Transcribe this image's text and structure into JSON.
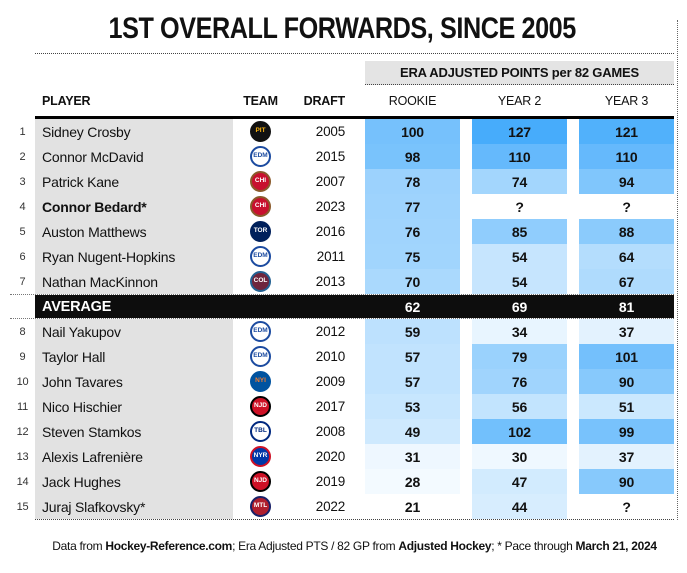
{
  "title": "1ST OVERALL FORWARDS, SINCE 2005",
  "chart_data": {
    "type": "table",
    "title": "1ST OVERALL FORWARDS, SINCE 2005",
    "value_group_header": "ERA ADJUSTED POINTS per 82 GAMES",
    "columns": {
      "player": "PLAYER",
      "team": "TEAM",
      "draft": "DRAFT",
      "rookie": "ROOKIE",
      "year2": "YEAR 2",
      "year3": "YEAR 3"
    },
    "heatmap": {
      "min_value": 21,
      "max_value": 127,
      "min_color": "#FFFFFF",
      "max_color": "#47ACFB"
    },
    "rows": [
      {
        "type": "player",
        "rank": 1,
        "name": "Sidney Crosby",
        "bold": false,
        "team": "Pittsburgh Penguins",
        "team_abbr": "PIT",
        "draft": "2005",
        "values": [
          100,
          127,
          121
        ]
      },
      {
        "type": "player",
        "rank": 2,
        "name": "Connor McDavid",
        "bold": false,
        "team": "Edmonton Oilers",
        "team_abbr": "EDM",
        "draft": "2015",
        "values": [
          98,
          110,
          110
        ]
      },
      {
        "type": "player",
        "rank": 3,
        "name": "Patrick Kane",
        "bold": false,
        "team": "Chicago Blackhawks",
        "team_abbr": "CHI",
        "draft": "2007",
        "values": [
          78,
          74,
          94
        ]
      },
      {
        "type": "player",
        "rank": 4,
        "name": "Connor Bedard*",
        "bold": true,
        "team": "Chicago Blackhawks",
        "team_abbr": "CHI",
        "draft": "2023",
        "values": [
          77,
          "?",
          "?"
        ]
      },
      {
        "type": "player",
        "rank": 5,
        "name": "Auston Matthews",
        "bold": false,
        "team": "Toronto Maple Leafs",
        "team_abbr": "TOR",
        "draft": "2016",
        "values": [
          76,
          85,
          88
        ]
      },
      {
        "type": "player",
        "rank": 6,
        "name": "Ryan Nugent-Hopkins",
        "bold": false,
        "team": "Edmonton Oilers",
        "team_abbr": "EDM",
        "draft": "2011",
        "values": [
          75,
          54,
          64
        ]
      },
      {
        "type": "player",
        "rank": 7,
        "name": "Nathan MacKinnon",
        "bold": false,
        "team": "Colorado Avalanche",
        "team_abbr": "COL",
        "draft": "2013",
        "values": [
          70,
          54,
          67
        ]
      },
      {
        "type": "average",
        "label": "AVERAGE",
        "values": [
          62,
          69,
          81
        ]
      },
      {
        "type": "player",
        "rank": 8,
        "name": "Nail Yakupov",
        "bold": false,
        "team": "Edmonton Oilers",
        "team_abbr": "EDM",
        "draft": "2012",
        "values": [
          59,
          34,
          37
        ]
      },
      {
        "type": "player",
        "rank": 9,
        "name": "Taylor Hall",
        "bold": false,
        "team": "Edmonton Oilers",
        "team_abbr": "EDM",
        "draft": "2010",
        "values": [
          57,
          79,
          101
        ]
      },
      {
        "type": "player",
        "rank": 10,
        "name": "John Tavares",
        "bold": false,
        "team": "New York Islanders",
        "team_abbr": "NYI",
        "draft": "2009",
        "values": [
          57,
          76,
          90
        ]
      },
      {
        "type": "player",
        "rank": 11,
        "name": "Nico Hischier",
        "bold": false,
        "team": "New Jersey Devils",
        "team_abbr": "NJD",
        "draft": "2017",
        "values": [
          53,
          56,
          51
        ]
      },
      {
        "type": "player",
        "rank": 12,
        "name": "Steven Stamkos",
        "bold": false,
        "team": "Tampa Bay Lightning",
        "team_abbr": "TBL",
        "draft": "2008",
        "values": [
          49,
          102,
          99
        ]
      },
      {
        "type": "player",
        "rank": 13,
        "name": "Alexis Lafrenière",
        "bold": false,
        "team": "New York Rangers",
        "team_abbr": "NYR",
        "draft": "2020",
        "values": [
          31,
          30,
          37
        ]
      },
      {
        "type": "player",
        "rank": 14,
        "name": "Jack Hughes",
        "bold": false,
        "team": "New Jersey Devils",
        "team_abbr": "NJD",
        "draft": "2019",
        "values": [
          28,
          47,
          90
        ]
      },
      {
        "type": "player",
        "rank": 15,
        "name": "Juraj Slafkovsky*",
        "bold": false,
        "team": "Montreal Canadiens",
        "team_abbr": "MTL",
        "draft": "2022",
        "values": [
          21,
          44,
          "?"
        ]
      }
    ],
    "teams": {
      "PIT": {
        "name": "Pittsburgh Penguins",
        "slug": "pittsburgh-penguins",
        "bg": "#111111",
        "fg": "#FCB514",
        "border": "#111111"
      },
      "EDM": {
        "name": "Edmonton Oilers",
        "slug": "edmonton-oilers",
        "bg": "#FFFFFF",
        "fg": "#1C4BA0",
        "border": "#1C4BA0"
      },
      "CHI": {
        "name": "Chicago Blackhawks",
        "slug": "chicago-blackhawks",
        "bg": "#C8102E",
        "fg": "#FFFFFF",
        "border": "#8A5A2B"
      },
      "TOR": {
        "name": "Toronto Maple Leafs",
        "slug": "toronto-maple-leafs",
        "bg": "#00205B",
        "fg": "#FFFFFF",
        "border": "#00205B"
      },
      "COL": {
        "name": "Colorado Avalanche",
        "slug": "colorado-avalanche",
        "bg": "#6F263D",
        "fg": "#FFFFFF",
        "border": "#236192"
      },
      "NYI": {
        "name": "New York Islanders",
        "slug": "new-york-islanders",
        "bg": "#0053A0",
        "fg": "#F47D30",
        "border": "#0053A0"
      },
      "NJD": {
        "name": "New Jersey Devils",
        "slug": "new-jersey-devils",
        "bg": "#CE1126",
        "fg": "#FFFFFF",
        "border": "#000000"
      },
      "TBL": {
        "name": "Tampa Bay Lightning",
        "slug": "tampa-bay-lightning",
        "bg": "#FFFFFF",
        "fg": "#00287F",
        "border": "#00287F"
      },
      "NYR": {
        "name": "New York Rangers",
        "slug": "new-york-rangers",
        "bg": "#0038A8",
        "fg": "#FFFFFF",
        "border": "#CE1126"
      },
      "MTL": {
        "name": "Montreal Canadiens",
        "slug": "montreal-canadiens",
        "bg": "#AF1E2D",
        "fg": "#FFFFFF",
        "border": "#192168"
      }
    },
    "footnote_segments": [
      {
        "text": "Data from ",
        "bold": false
      },
      {
        "text": "Hockey-Reference.com",
        "bold": true
      },
      {
        "text": "; Era Adjusted PTS / 82 GP from ",
        "bold": false
      },
      {
        "text": "Adjusted Hockey",
        "bold": true
      },
      {
        "text": "; * Pace through ",
        "bold": false
      },
      {
        "text": "March 21, 2024",
        "bold": true
      }
    ]
  }
}
